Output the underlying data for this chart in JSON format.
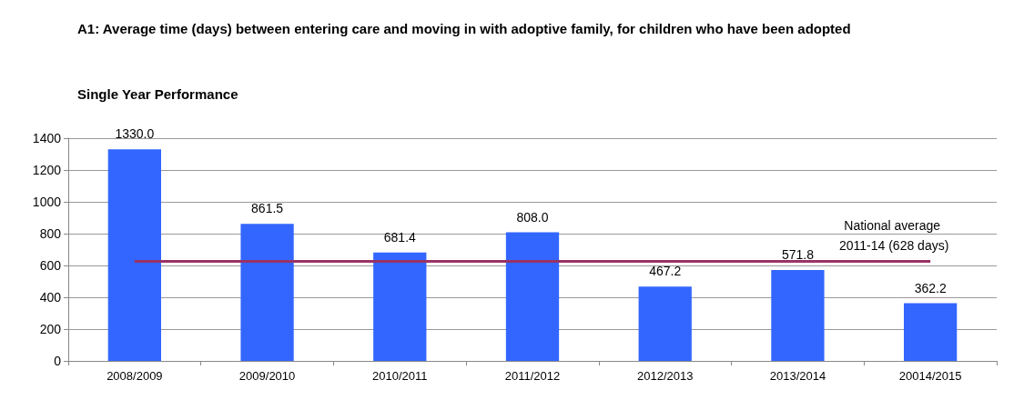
{
  "chart_data": {
    "type": "bar",
    "title": "A1: Average time (days) between entering care and moving in with adoptive family, for children who have been adopted",
    "subtitle": "Single Year Performance",
    "categories": [
      "2008/2009",
      "2009/2010",
      "2010/2011",
      "2011/2012",
      "2012/2013",
      "2013/2014",
      "20014/2015"
    ],
    "values": [
      1330.0,
      861.5,
      681.4,
      808.0,
      467.2,
      571.8,
      362.2
    ],
    "value_labels": [
      "1330.0",
      "861.5",
      "681.4",
      "808.0",
      "467.2",
      "571.8",
      "362.2"
    ],
    "color": "#3366ff",
    "ylim": [
      0,
      1400
    ],
    "yticks": [
      0,
      200,
      400,
      600,
      800,
      1000,
      1200,
      1400
    ],
    "grid": "y",
    "ref_lines": [
      {
        "axis": "y",
        "value": 628,
        "label": "National average 2011-14 (628 days)",
        "color": "#993366"
      }
    ]
  }
}
